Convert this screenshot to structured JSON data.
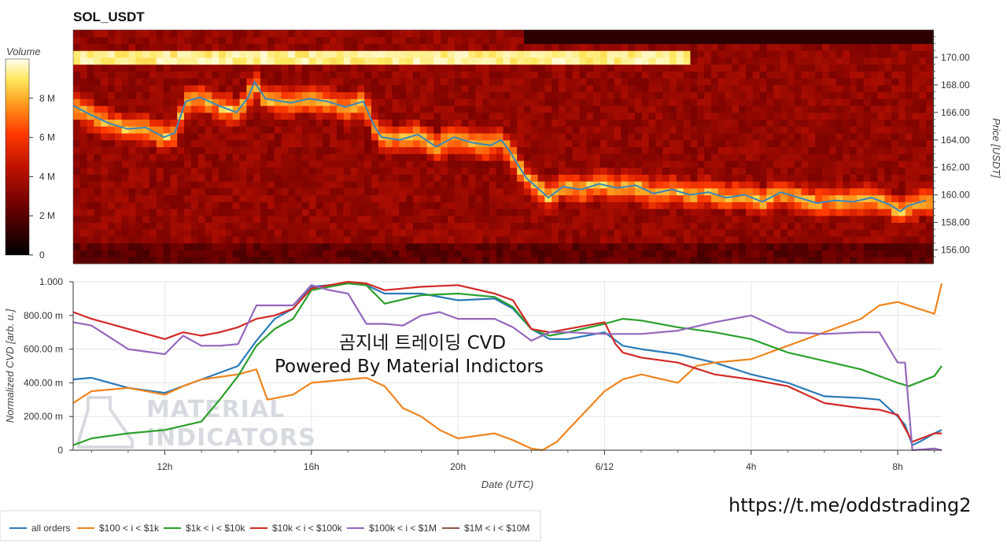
{
  "chart_data": [
    {
      "type": "heatmap",
      "title": "SOL_USDT",
      "colorbar_label": "Volume",
      "colorbar_ticks": [
        "0",
        "2 M",
        "4 M",
        "6 M",
        "8 M"
      ],
      "colorbar_range": [
        0,
        10
      ],
      "colorbar_unit_millions": true,
      "ylabel": "Price [USDT]",
      "yticks": [
        "156.00",
        "158.00",
        "160.00",
        "162.00",
        "164.00",
        "166.00",
        "168.00",
        "170.00"
      ],
      "ylim": [
        155,
        172
      ],
      "price_series": {
        "x": [
          9.5,
          10,
          10.5,
          11,
          11.5,
          12,
          12.3,
          12.6,
          13,
          13.5,
          14,
          14.3,
          14.5,
          14.8,
          15.5,
          16,
          16.5,
          17,
          17.5,
          17.8,
          18,
          18.5,
          19,
          19.5,
          20,
          20.5,
          21,
          21.3,
          21.5,
          21.8,
          22,
          22.3,
          22.6,
          23,
          23.5,
          24,
          24.5,
          25,
          25.5,
          26,
          26.5,
          27,
          27.5,
          28,
          28.5,
          29,
          29.5,
          30,
          30.5,
          31,
          31.5,
          32,
          32.3,
          32.5,
          33
        ],
        "y": [
          166.5,
          165.8,
          165.2,
          164.8,
          164.9,
          164.2,
          164.5,
          166.8,
          167.1,
          166.5,
          166.0,
          167.0,
          168.2,
          167.0,
          166.7,
          167.0,
          166.8,
          166.4,
          166.8,
          165.0,
          164.2,
          164.0,
          164.4,
          163.5,
          164.2,
          163.8,
          163.6,
          164.0,
          163.3,
          162.0,
          161.2,
          160.5,
          159.8,
          160.6,
          160.4,
          160.8,
          160.5,
          160.7,
          160.1,
          160.4,
          160.0,
          160.2,
          159.8,
          160.0,
          159.5,
          160.2,
          159.8,
          159.4,
          159.6,
          159.5,
          159.8,
          159.3,
          158.8,
          159.2,
          159.6
        ]
      }
    },
    {
      "type": "line",
      "ylabel": "Normalized CVD [arb. u.]",
      "xlabel": "Date (UTC)",
      "xticks": [
        {
          "label": "12h",
          "x": 12
        },
        {
          "label": "16h",
          "x": 16
        },
        {
          "label": "20h",
          "x": 20
        },
        {
          "label": "6/12",
          "x": 24
        },
        {
          "label": "4h",
          "x": 28
        },
        {
          "label": "8h",
          "x": 32
        }
      ],
      "xlim": [
        9.5,
        33.2
      ],
      "yticks": [
        "0",
        "200.00 m",
        "400.00 m",
        "600.00 m",
        "800.00 m",
        "1.000"
      ],
      "ylim": [
        0,
        1
      ],
      "series": [
        {
          "name": "all orders",
          "color": "#2a7ab8",
          "x": [
            9.5,
            10,
            11,
            12,
            13,
            14,
            14.5,
            15,
            15.5,
            16,
            17,
            17.5,
            18,
            19,
            20,
            21,
            21.5,
            22,
            22.5,
            23,
            24,
            24.5,
            25,
            26,
            27,
            28,
            29,
            30,
            31,
            31.5,
            32,
            32.2,
            32.4,
            32.6,
            33,
            33.2
          ],
          "y": [
            0.42,
            0.43,
            0.37,
            0.34,
            0.42,
            0.5,
            0.65,
            0.78,
            0.84,
            0.97,
            0.99,
            0.98,
            0.93,
            0.93,
            0.89,
            0.9,
            0.84,
            0.72,
            0.66,
            0.66,
            0.7,
            0.62,
            0.6,
            0.57,
            0.52,
            0.45,
            0.4,
            0.32,
            0.31,
            0.3,
            0.2,
            0.15,
            0.03,
            0.05,
            0.1,
            0.12
          ]
        },
        {
          "name": "$100 < i < $1k",
          "color": "#f0841e",
          "x": [
            9.5,
            10,
            11,
            12,
            12.5,
            13,
            14,
            14.5,
            14.8,
            15.5,
            16,
            17,
            17.5,
            18,
            18.5,
            19,
            19.5,
            20,
            21,
            21.5,
            22,
            22.3,
            22.7,
            23,
            24,
            24.5,
            25,
            26,
            26.5,
            27,
            28,
            29,
            30,
            31,
            31.5,
            32,
            33,
            33.2
          ],
          "y": [
            0.28,
            0.35,
            0.37,
            0.33,
            0.38,
            0.42,
            0.45,
            0.48,
            0.3,
            0.33,
            0.4,
            0.42,
            0.43,
            0.38,
            0.25,
            0.2,
            0.12,
            0.07,
            0.1,
            0.06,
            0.01,
            0.0,
            0.05,
            0.12,
            0.35,
            0.42,
            0.45,
            0.4,
            0.5,
            0.52,
            0.54,
            0.62,
            0.7,
            0.78,
            0.86,
            0.88,
            0.81,
            0.99
          ]
        },
        {
          "name": "$1k < i < $10k",
          "color": "#2ba02b",
          "x": [
            9.5,
            10,
            11,
            12,
            13,
            13.5,
            14,
            14.5,
            15,
            15.5,
            16,
            17,
            17.5,
            18,
            19,
            20,
            21,
            21.5,
            22,
            22.5,
            23,
            24,
            24.5,
            25,
            26,
            27,
            28,
            29,
            30,
            31,
            32,
            32.3,
            33,
            33.2
          ],
          "y": [
            0.03,
            0.07,
            0.1,
            0.12,
            0.17,
            0.3,
            0.44,
            0.62,
            0.72,
            0.78,
            0.95,
            0.99,
            0.98,
            0.87,
            0.92,
            0.93,
            0.91,
            0.85,
            0.72,
            0.68,
            0.7,
            0.75,
            0.78,
            0.77,
            0.73,
            0.7,
            0.66,
            0.58,
            0.53,
            0.48,
            0.4,
            0.38,
            0.44,
            0.5
          ]
        },
        {
          "name": "$10k < i < $100k",
          "color": "#d12a27",
          "x": [
            9.5,
            10,
            11,
            12,
            12.5,
            13,
            13.5,
            14,
            14.5,
            15,
            15.5,
            16,
            17,
            17.5,
            18,
            19,
            20,
            21,
            21.5,
            22,
            22.5,
            23,
            24,
            24.3,
            24.5,
            25,
            26,
            27,
            28,
            29,
            30,
            31,
            31.5,
            32,
            32.2,
            32.4,
            33,
            33.2
          ],
          "y": [
            0.82,
            0.78,
            0.72,
            0.66,
            0.7,
            0.68,
            0.7,
            0.73,
            0.78,
            0.8,
            0.84,
            0.96,
            1.0,
            0.99,
            0.95,
            0.97,
            0.98,
            0.93,
            0.89,
            0.72,
            0.7,
            0.72,
            0.76,
            0.63,
            0.58,
            0.55,
            0.52,
            0.45,
            0.42,
            0.38,
            0.28,
            0.25,
            0.24,
            0.21,
            0.13,
            0.05,
            0.1,
            0.1
          ]
        },
        {
          "name": "$100k < i < $1M",
          "color": "#9467bd",
          "x": [
            9.5,
            10,
            11,
            12,
            12.5,
            13,
            13.5,
            14,
            14.5,
            15,
            15.5,
            16,
            16.5,
            17,
            17.5,
            18,
            18.5,
            19,
            19.5,
            20,
            21,
            21.5,
            22,
            22.5,
            23,
            24,
            25,
            26,
            27,
            28,
            29,
            30,
            31,
            31.5,
            32,
            32.2,
            32.4,
            33,
            33.2
          ],
          "y": [
            0.76,
            0.74,
            0.6,
            0.57,
            0.68,
            0.62,
            0.62,
            0.63,
            0.86,
            0.86,
            0.86,
            0.98,
            0.95,
            0.93,
            0.75,
            0.75,
            0.74,
            0.8,
            0.82,
            0.78,
            0.78,
            0.73,
            0.65,
            0.7,
            0.7,
            0.69,
            0.69,
            0.71,
            0.76,
            0.8,
            0.7,
            0.69,
            0.7,
            0.7,
            0.52,
            0.52,
            0.0,
            0.01,
            0.0
          ]
        },
        {
          "name": "$1M < i < $10M",
          "color": "#8c564b",
          "x": [],
          "y": []
        }
      ]
    }
  ],
  "overlay_title": "곰지네 트레이딩 CVD",
  "overlay_subtitle": "Powered By Material Indictors",
  "watermark_line1": "MATERIAL",
  "watermark_line2": "INDICATORS",
  "footer_url": "https://t.me/oddstrading2"
}
